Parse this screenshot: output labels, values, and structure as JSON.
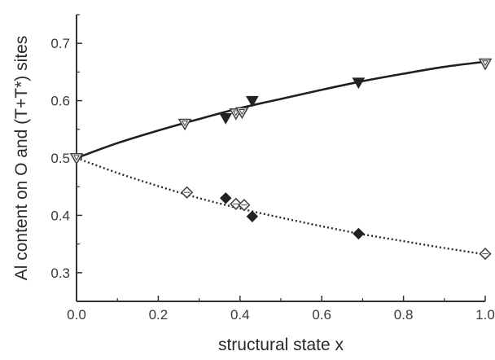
{
  "chart_data": {
    "type": "scatter",
    "title": "",
    "xlabel": "structural state x",
    "ylabel": "Al content on O and (T+T*) sites",
    "xlim": [
      0.0,
      1.0
    ],
    "ylim": [
      0.25,
      0.75
    ],
    "x_ticks": [
      0.0,
      0.2,
      0.4,
      0.6,
      0.8,
      1.0
    ],
    "x_tick_labels": [
      "0.0",
      "0.2",
      "0.4",
      "0.6",
      "0.8",
      "1.0"
    ],
    "y_ticks": [
      0.3,
      0.4,
      0.5,
      0.6,
      0.7
    ],
    "y_tick_labels": [
      "0.3",
      "0.4",
      "0.5",
      "0.6",
      "0.7"
    ],
    "grid": false,
    "legend": "none",
    "series": [
      {
        "marker": "triangle-down-open",
        "color": "#444444",
        "points": [
          [
            0.0,
            0.5
          ],
          [
            0.265,
            0.56
          ],
          [
            0.39,
            0.578
          ],
          [
            0.405,
            0.58
          ],
          [
            1.0,
            0.665
          ]
        ]
      },
      {
        "marker": "triangle-down-filled",
        "color": "#222222",
        "points": [
          [
            0.365,
            0.57
          ],
          [
            0.43,
            0.6
          ],
          [
            0.69,
            0.632
          ]
        ]
      },
      {
        "marker": "diamond-open",
        "color": "#444444",
        "points": [
          [
            0.27,
            0.44
          ],
          [
            0.39,
            0.42
          ],
          [
            0.41,
            0.418
          ],
          [
            1.0,
            0.333
          ]
        ]
      },
      {
        "marker": "diamond-filled",
        "color": "#222222",
        "points": [
          [
            0.365,
            0.43
          ],
          [
            0.43,
            0.398
          ],
          [
            0.69,
            0.368
          ]
        ]
      }
    ],
    "curves": [
      {
        "style": "solid",
        "color": "#1f1f1f",
        "points": [
          [
            0.0,
            0.5
          ],
          [
            0.1,
            0.526
          ],
          [
            0.2,
            0.548
          ],
          [
            0.3,
            0.568
          ],
          [
            0.4,
            0.587
          ],
          [
            0.5,
            0.603
          ],
          [
            0.6,
            0.619
          ],
          [
            0.7,
            0.634
          ],
          [
            0.8,
            0.647
          ],
          [
            0.9,
            0.659
          ],
          [
            1.0,
            0.668
          ]
        ]
      },
      {
        "style": "dotted",
        "color": "#2a2a2a",
        "points": [
          [
            0.0,
            0.5
          ],
          [
            0.1,
            0.474
          ],
          [
            0.2,
            0.451
          ],
          [
            0.3,
            0.43
          ],
          [
            0.4,
            0.412
          ],
          [
            0.5,
            0.396
          ],
          [
            0.6,
            0.381
          ],
          [
            0.7,
            0.367
          ],
          [
            0.8,
            0.355
          ],
          [
            0.9,
            0.343
          ],
          [
            1.0,
            0.332
          ]
        ]
      }
    ]
  }
}
